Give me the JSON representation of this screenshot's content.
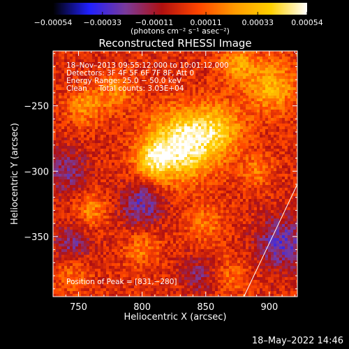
{
  "chart_data": {
    "type": "heatmap",
    "title": "Reconstructed RHESSI Image",
    "xlabel": "Heliocentric X (arcsec)",
    "ylabel": "Heliocentric Y (arcsec)",
    "xlim": [
      730,
      922
    ],
    "ylim": [
      -396,
      -208
    ],
    "xticks": [
      750,
      800,
      850,
      900
    ],
    "yticks": [
      -350,
      -300,
      -250
    ],
    "xtick_labels": [
      "750",
      "800",
      "850",
      "900"
    ],
    "ytick_labels": [
      "−350",
      "−300",
      "−250"
    ],
    "colorbar": {
      "range": [
        -0.00054,
        0.00054
      ],
      "tick_values": [
        -0.00054,
        -0.00033,
        -0.00011,
        0.00011,
        0.00033,
        0.00054
      ],
      "tick_labels": [
        "−0.00054",
        "−0.00033",
        "−0.00011",
        "0.00011",
        "0.00033",
        "0.00054"
      ],
      "unit_label": "(photons cm⁻² s⁻¹ asec⁻²)",
      "colormap": [
        "#000000",
        "#2020ff",
        "#7a3a9a",
        "#b01010",
        "#ff4500",
        "#ff9a00",
        "#ffd000",
        "#ffffff"
      ]
    },
    "annotations": {
      "time_range": "18–Nov–2013 09:55:12.000 to 10:01:12.000",
      "detectors": "Detectors: 3F 4F 5F 6F 7F 8F, Att 0",
      "energy_range": "Energy Range: 25.0 − 50.0 keV",
      "clean": "Clean     Total counts: 3.03E+04",
      "peak": "Position of Peak = [831,−280]"
    },
    "peak": {
      "x": 831,
      "y": -280
    },
    "limb_line": {
      "x1": 880,
      "y1": -396,
      "x2": 922,
      "y2": -310
    },
    "sources": [
      {
        "x": 831,
        "y": -280,
        "amp": 1.0,
        "sigma": 18
      },
      {
        "x": 808,
        "y": -292,
        "amp": 0.6,
        "sigma": 10
      },
      {
        "x": 860,
        "y": -268,
        "amp": 0.55,
        "sigma": 14
      },
      {
        "x": 902,
        "y": -235,
        "amp": 0.55,
        "sigma": 14
      },
      {
        "x": 875,
        "y": -218,
        "amp": 0.45,
        "sigma": 10
      },
      {
        "x": 755,
        "y": -250,
        "amp": 0.4,
        "sigma": 10
      },
      {
        "x": 780,
        "y": -240,
        "amp": 0.35,
        "sigma": 10
      },
      {
        "x": 760,
        "y": -330,
        "amp": 0.35,
        "sigma": 9
      },
      {
        "x": 800,
        "y": -360,
        "amp": 0.3,
        "sigma": 10
      },
      {
        "x": 850,
        "y": -340,
        "amp": 0.3,
        "sigma": 10
      },
      {
        "x": 890,
        "y": -300,
        "amp": 0.3,
        "sigma": 9
      },
      {
        "x": 870,
        "y": -380,
        "amp": 0.25,
        "sigma": 10
      },
      {
        "x": 745,
        "y": -380,
        "amp": 0.25,
        "sigma": 10
      },
      {
        "x": 740,
        "y": -300,
        "amp": -0.35,
        "sigma": 12
      },
      {
        "x": 800,
        "y": -325,
        "amp": -0.45,
        "sigma": 12
      },
      {
        "x": 745,
        "y": -355,
        "amp": -0.35,
        "sigma": 10
      },
      {
        "x": 910,
        "y": -355,
        "amp": -0.5,
        "sigma": 14
      },
      {
        "x": 845,
        "y": -380,
        "amp": -0.3,
        "sigma": 10
      }
    ]
  },
  "footer_date": "18–May–2022 14:46"
}
